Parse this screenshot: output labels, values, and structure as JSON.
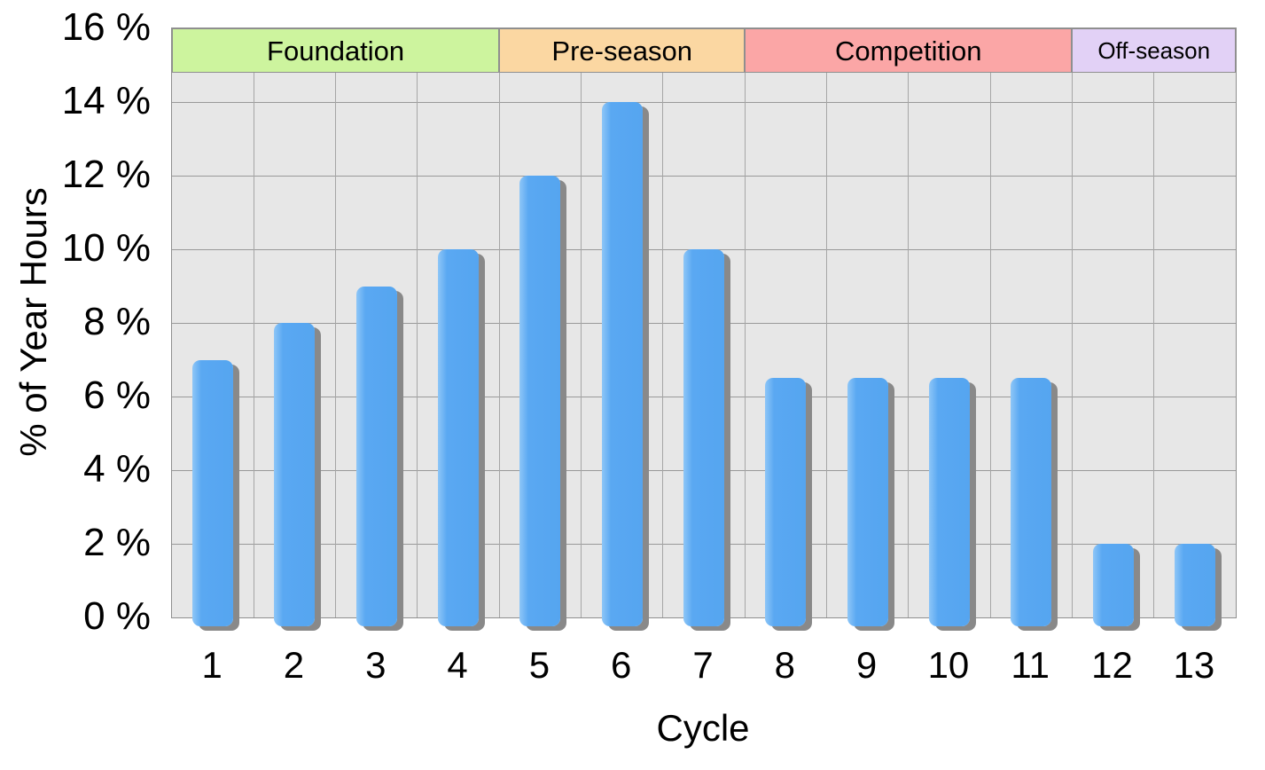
{
  "chart_data": {
    "type": "bar",
    "xlabel": "Cycle",
    "ylabel": "% of Year Hours",
    "categories": [
      "1",
      "2",
      "3",
      "4",
      "5",
      "6",
      "7",
      "8",
      "9",
      "10",
      "11",
      "12",
      "13"
    ],
    "values": [
      7,
      8,
      9,
      10,
      12,
      14,
      10,
      6.5,
      6.5,
      6.5,
      6.5,
      2,
      2
    ],
    "unit": "%",
    "ylim": [
      0,
      16
    ],
    "ytick_step": 2,
    "ytick_labels": [
      "0 %",
      "2 %",
      "4 %",
      "6 %",
      "8 %",
      "10 %",
      "12 %",
      "14 %",
      "16 %"
    ],
    "grid": true,
    "legend": "none",
    "bar_color": "#57a6f1",
    "bar_shadow_color": "#898989",
    "plot_bg": "#e7e7e7",
    "page_bg": "#ffffff",
    "bands": [
      {
        "label": "Foundation",
        "start": 1,
        "end": 4,
        "color": "#cdf49e"
      },
      {
        "label": "Pre-season",
        "start": 5,
        "end": 7,
        "color": "#fbd7a2"
      },
      {
        "label": "Competition",
        "start": 8,
        "end": 11,
        "color": "#fba6a6"
      },
      {
        "label": "Off-season",
        "start": 12,
        "end": 13,
        "color": "#e2d1f6"
      }
    ]
  }
}
